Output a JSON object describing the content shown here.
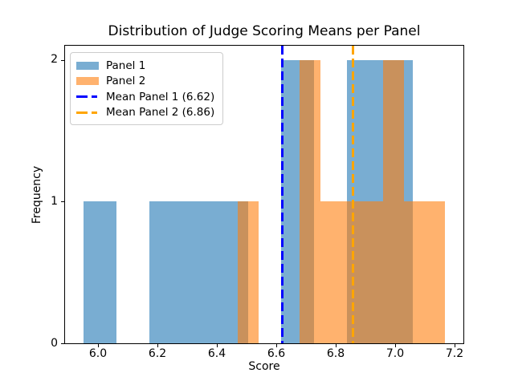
{
  "chart_data": {
    "type": "histogram",
    "title": "Distribution of Judge Scoring Means per Panel",
    "xlabel": "Score",
    "ylabel": "Frequency",
    "xlim": [
      5.889,
      7.231
    ],
    "ylim": [
      0,
      2.1
    ],
    "grid": false,
    "xticks": [
      {
        "value": 6.0,
        "label": "6.0"
      },
      {
        "value": 6.2,
        "label": "6.2"
      },
      {
        "value": 6.4,
        "label": "6.4"
      },
      {
        "value": 6.6,
        "label": "6.6"
      },
      {
        "value": 6.8,
        "label": "6.8"
      },
      {
        "value": 7.0,
        "label": "7.0"
      },
      {
        "value": 7.2,
        "label": "7.2"
      }
    ],
    "yticks": [
      {
        "value": 0,
        "label": "0"
      },
      {
        "value": 1,
        "label": "1"
      },
      {
        "value": 2,
        "label": "2"
      }
    ],
    "series": [
      {
        "name": "Panel 1",
        "color": "#1f77b4",
        "alpha": 0.6,
        "bin_edges": [
          5.95,
          6.061,
          6.172,
          6.283,
          6.394,
          6.505,
          6.616,
          6.727,
          6.838,
          6.949,
          7.06
        ],
        "counts": [
          1,
          0,
          1,
          1,
          1,
          0,
          2,
          0,
          2,
          2
        ]
      },
      {
        "name": "Panel 2",
        "color": "#ff7f0e",
        "alpha": 0.6,
        "bin_edges": [
          6.47,
          6.54,
          6.61,
          6.68,
          6.75,
          6.82,
          6.89,
          6.96,
          7.03,
          7.1,
          7.17
        ],
        "counts": [
          1,
          0,
          0,
          2,
          1,
          1,
          1,
          2,
          1,
          1
        ]
      }
    ],
    "mean_lines": [
      {
        "name": "mean-panel-1",
        "label": "Mean Panel 1 (6.62)",
        "value": 6.62,
        "color": "#0000ff",
        "style": "dashed",
        "linewidth": 3
      },
      {
        "name": "mean-panel-2",
        "label": "Mean Panel 2 (6.86)",
        "value": 6.86,
        "color": "#ffa500",
        "style": "dashed",
        "linewidth": 3
      }
    ],
    "legend": {
      "position": "upper-left",
      "entries": [
        {
          "label": "Panel 1",
          "swatch": "patch",
          "color": "#1f77b4",
          "alpha": 0.6
        },
        {
          "label": "Panel 2",
          "swatch": "patch",
          "color": "#ff7f0e",
          "alpha": 0.6
        },
        {
          "label": "Mean Panel 1 (6.62)",
          "swatch": "dashed-line",
          "color": "#0000ff",
          "alpha": 1
        },
        {
          "label": "Mean Panel 2 (6.86)",
          "swatch": "dashed-line",
          "color": "#ffa500",
          "alpha": 1
        }
      ]
    }
  }
}
